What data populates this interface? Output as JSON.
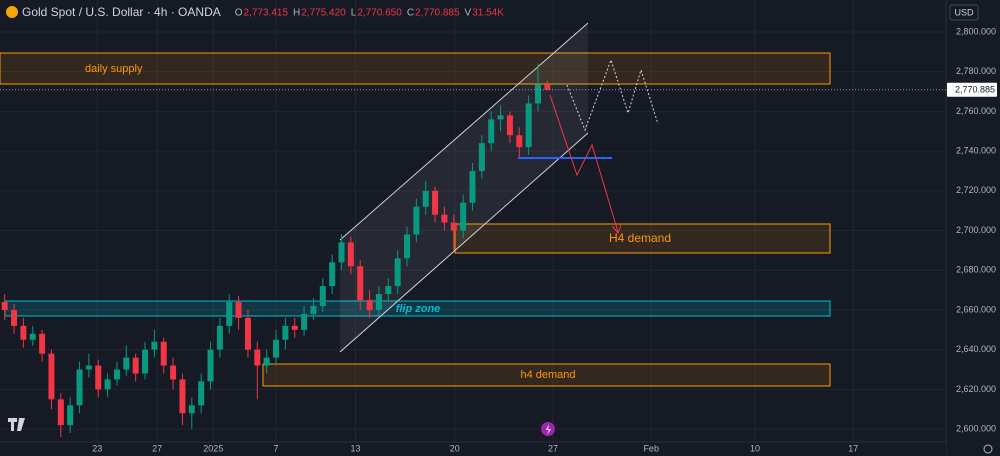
{
  "chart_data": {
    "type": "candlestick",
    "title": "Gold Spot / U.S. Dollar · 4h · OANDA",
    "ohlc_legend": [
      {
        "key": "O",
        "value": "2,773.415"
      },
      {
        "key": "H",
        "value": "2,775.420"
      },
      {
        "key": "L",
        "value": "2,770.650"
      },
      {
        "key": "C",
        "value": "2,770.885"
      },
      {
        "key": "V",
        "value": "31.54K"
      }
    ],
    "currency": "USD",
    "x": [
      0.5,
      1.5,
      2.5,
      3.5,
      4.5,
      5.5,
      6.5,
      7.5,
      8.5,
      9.5,
      10.5,
      11.5,
      12.5,
      13.5,
      14.5,
      15.5,
      16.5,
      17.5,
      18.5,
      19.5,
      20.5,
      21.5,
      22.5,
      23.5,
      24.5,
      25.5,
      26.5,
      27.5,
      28.5,
      29.5,
      30.5,
      31.5,
      32.5,
      33.5,
      34.5,
      35.5,
      36.5,
      37.5,
      38.5,
      39.5,
      40.5,
      41.5,
      42.5,
      43.5,
      44.5,
      45.5,
      46.5,
      47.5,
      48.5,
      49.5,
      50.5,
      51.5,
      52.5,
      53.5,
      54.5,
      55.5,
      56.5,
      57.5,
      58.5
    ],
    "open": [
      2664,
      2660,
      2652,
      2645,
      2648,
      2638,
      2615,
      2602,
      2612,
      2630,
      2632,
      2620,
      2625,
      2630,
      2636,
      2628,
      2640,
      2644,
      2632,
      2625,
      2608,
      2612,
      2624,
      2640,
      2652,
      2664,
      2656,
      2640,
      2632,
      2636,
      2645,
      2652,
      2650,
      2658,
      2662,
      2672,
      2684,
      2694,
      2682,
      2665,
      2660,
      2668,
      2672,
      2686,
      2698,
      2712,
      2720,
      2708,
      2704,
      2700,
      2714,
      2730,
      2744,
      2756,
      2758,
      2748,
      2742,
      2764,
      2773.415
    ],
    "high": [
      2668,
      2663,
      2656,
      2652,
      2650,
      2640,
      2618,
      2616,
      2634,
      2638,
      2635,
      2628,
      2634,
      2642,
      2638,
      2644,
      2650,
      2646,
      2636,
      2628,
      2616,
      2628,
      2644,
      2656,
      2668,
      2667,
      2660,
      2644,
      2640,
      2650,
      2656,
      2656,
      2662,
      2666,
      2676,
      2688,
      2698,
      2697,
      2685,
      2670,
      2672,
      2676,
      2690,
      2702,
      2716,
      2725,
      2722,
      2712,
      2708,
      2718,
      2734,
      2748,
      2760,
      2763,
      2760,
      2752,
      2768,
      2784,
      2775.42
    ],
    "low": [
      2655,
      2648,
      2641,
      2642,
      2634,
      2610,
      2596,
      2598,
      2608,
      2626,
      2616,
      2616,
      2622,
      2627,
      2624,
      2625,
      2636,
      2628,
      2620,
      2602,
      2600,
      2608,
      2620,
      2636,
      2648,
      2650,
      2636,
      2615,
      2628,
      2632,
      2640,
      2646,
      2647,
      2655,
      2659,
      2668,
      2680,
      2678,
      2660,
      2656,
      2657,
      2664,
      2668,
      2682,
      2694,
      2708,
      2704,
      2700,
      2690,
      2696,
      2710,
      2726,
      2740,
      2750,
      2744,
      2736,
      2738,
      2760,
      2770.65
    ],
    "close": [
      2660,
      2652,
      2645,
      2648,
      2638,
      2615,
      2602,
      2612,
      2630,
      2632,
      2620,
      2625,
      2630,
      2636,
      2628,
      2640,
      2644,
      2632,
      2625,
      2608,
      2612,
      2624,
      2640,
      2652,
      2664,
      2656,
      2640,
      2632,
      2636,
      2645,
      2652,
      2650,
      2658,
      2662,
      2672,
      2684,
      2694,
      2682,
      2665,
      2660,
      2668,
      2672,
      2686,
      2698,
      2712,
      2720,
      2708,
      2704,
      2700,
      2714,
      2730,
      2744,
      2756,
      2758,
      2748,
      2742,
      2764,
      2773.415,
      2770.885
    ],
    "up_color": "#089981",
    "down_color": "#f23645",
    "xlim": [
      0,
      101
    ],
    "ylim": [
      2593.5,
      2816.1
    ],
    "xticks": [
      {
        "value": 10.4,
        "label": "23"
      },
      {
        "value": 16.8,
        "label": "27"
      },
      {
        "value": 22.8,
        "label": "2025"
      },
      {
        "value": 29.5,
        "label": "7"
      },
      {
        "value": 38.0,
        "label": "13"
      },
      {
        "value": 48.6,
        "label": "20"
      },
      {
        "value": 59.1,
        "label": "27"
      },
      {
        "value": 69.6,
        "label": "Feb"
      },
      {
        "value": 80.7,
        "label": "10"
      },
      {
        "value": 91.2,
        "label": "17"
      }
    ],
    "yticks": [
      {
        "value": 2600,
        "label": "2,600.000"
      },
      {
        "value": 2620,
        "label": "2,620.000"
      },
      {
        "value": 2640,
        "label": "2,640.000"
      },
      {
        "value": 2660,
        "label": "2,660.000"
      },
      {
        "value": 2680,
        "label": "2,680.000"
      },
      {
        "value": 2700,
        "label": "2,700.000"
      },
      {
        "value": 2720,
        "label": "2,720.000"
      },
      {
        "value": 2740,
        "label": "2,740.000"
      },
      {
        "value": 2760,
        "label": "2,760.000"
      },
      {
        "value": 2780,
        "label": "2,780.000"
      },
      {
        "value": 2800,
        "label": "2,800.000"
      }
    ],
    "grid": true,
    "price_label": {
      "value": 2770.885,
      "label": "2,770.885"
    },
    "annotations": [
      "daily supply",
      "H4 demand",
      "flip zone",
      "h4 demand"
    ]
  }
}
